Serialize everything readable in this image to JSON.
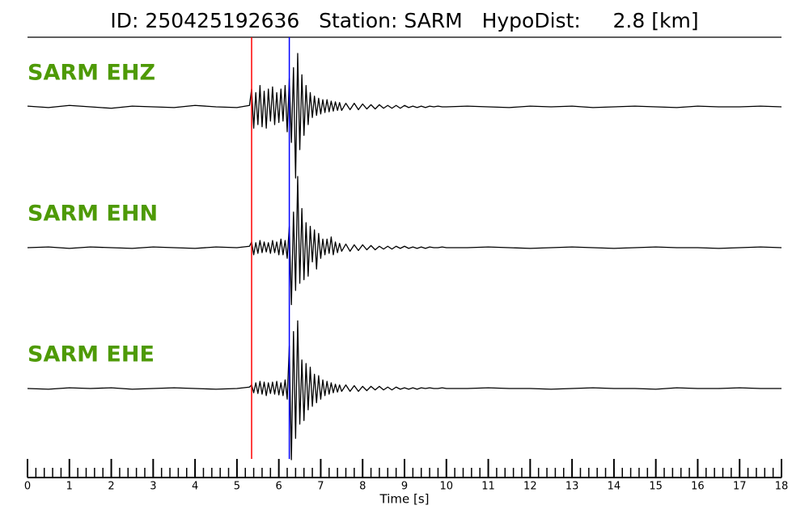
{
  "chart_data": {
    "type": "seismogram",
    "title": "ID: 250425192636   Station: SARM   HypoDist:     2.8 [km]",
    "xlabel": "Time [s]",
    "xlim": [
      0,
      18
    ],
    "xticks": [
      0,
      1,
      2,
      3,
      4,
      5,
      6,
      7,
      8,
      9,
      10,
      11,
      12,
      13,
      14,
      15,
      16,
      17,
      18
    ],
    "minor_xtick_step": 0.2,
    "ylim": [
      -1,
      1
    ],
    "label_color": "#4e9a06",
    "picks": [
      {
        "x": 5.35,
        "color": "#ff0000"
      },
      {
        "x": 6.25,
        "color": "#0000ff"
      }
    ],
    "x": [
      0,
      0.5,
      1,
      1.5,
      2,
      2.5,
      3,
      3.5,
      4,
      4.5,
      5,
      5.3,
      5.35,
      5.4,
      5.45,
      5.5,
      5.55,
      5.6,
      5.65,
      5.7,
      5.75,
      5.8,
      5.85,
      5.9,
      5.95,
      6,
      6.05,
      6.1,
      6.15,
      6.2,
      6.25,
      6.3,
      6.35,
      6.4,
      6.45,
      6.5,
      6.55,
      6.6,
      6.65,
      6.7,
      6.75,
      6.8,
      6.85,
      6.9,
      6.95,
      7,
      7.05,
      7.1,
      7.15,
      7.2,
      7.25,
      7.3,
      7.35,
      7.4,
      7.45,
      7.5,
      7.6,
      7.7,
      7.8,
      7.9,
      8,
      8.1,
      8.2,
      8.3,
      8.4,
      8.5,
      8.6,
      8.7,
      8.8,
      8.9,
      9,
      9.1,
      9.2,
      9.3,
      9.4,
      9.5,
      9.6,
      9.7,
      9.8,
      9.9,
      10,
      10.5,
      11,
      11.5,
      12,
      12.5,
      13,
      13.5,
      14,
      14.5,
      15,
      15.5,
      16,
      16.5,
      17,
      17.5,
      18
    ],
    "series": [
      {
        "name": "SARM EHZ",
        "color": "#000000",
        "values": [
          0.01,
          -0.01,
          0.02,
          0,
          -0.02,
          0.01,
          0,
          -0.01,
          0.02,
          0,
          -0.01,
          0.02,
          0.25,
          -0.3,
          0.2,
          -0.25,
          0.3,
          -0.28,
          0.22,
          -0.3,
          0.25,
          -0.2,
          0.28,
          -0.25,
          0.2,
          -0.22,
          0.25,
          -0.2,
          0.3,
          -0.35,
          0.4,
          -0.5,
          0.55,
          -1.0,
          0.75,
          -0.6,
          0.45,
          -0.4,
          0.3,
          -0.25,
          0.2,
          -0.15,
          0.15,
          -0.12,
          0.12,
          -0.1,
          0.1,
          -0.08,
          0.1,
          -0.07,
          0.08,
          -0.06,
          0.07,
          -0.05,
          0.06,
          -0.05,
          0.05,
          -0.04,
          0.05,
          -0.04,
          0.04,
          -0.03,
          0.03,
          -0.03,
          0.03,
          -0.02,
          0.02,
          -0.02,
          0.02,
          -0.02,
          0.02,
          -0.01,
          0.01,
          -0.01,
          0.01,
          -0.01,
          0.01,
          0,
          0.01,
          0,
          0,
          0.01,
          0,
          -0.01,
          0.01,
          0,
          0.01,
          -0.01,
          0,
          0.01,
          0,
          -0.01,
          0.01,
          0,
          0,
          0.01,
          0
        ]
      },
      {
        "name": "SARM EHN",
        "color": "#000000",
        "values": [
          0,
          0.01,
          -0.01,
          0.01,
          0,
          -0.01,
          0.01,
          0,
          -0.01,
          0.01,
          0,
          0.02,
          0.08,
          -0.1,
          0.07,
          -0.08,
          0.1,
          -0.07,
          0.08,
          -0.06,
          0.07,
          -0.08,
          0.1,
          -0.07,
          0.08,
          -0.1,
          0.12,
          -0.1,
          0.1,
          -0.15,
          0.3,
          -0.8,
          0.5,
          -0.6,
          1.0,
          -0.5,
          0.55,
          -0.45,
          0.35,
          -0.4,
          0.3,
          -0.2,
          0.25,
          -0.3,
          0.2,
          -0.15,
          0.12,
          -0.1,
          0.12,
          -0.08,
          0.15,
          -0.1,
          0.08,
          -0.07,
          0.06,
          -0.05,
          0.05,
          -0.05,
          0.04,
          -0.04,
          0.04,
          -0.03,
          0.03,
          -0.03,
          0.02,
          -0.02,
          0.02,
          -0.02,
          0.02,
          -0.01,
          0.02,
          -0.01,
          0.01,
          -0.01,
          0.01,
          -0.01,
          0.01,
          0,
          0,
          0.01,
          0,
          0,
          0.01,
          0,
          -0.01,
          0,
          0.01,
          0,
          -0.01,
          0,
          0.01,
          0,
          0,
          -0.01,
          0,
          0.01,
          0
        ]
      },
      {
        "name": "SARM EHE",
        "color": "#000000",
        "values": [
          0,
          -0.01,
          0.01,
          0,
          0.01,
          -0.01,
          0,
          0.01,
          0,
          -0.01,
          0,
          0.02,
          0.05,
          -0.06,
          0.08,
          -0.07,
          0.1,
          -0.08,
          0.09,
          -0.1,
          0.08,
          -0.07,
          0.09,
          -0.08,
          0.1,
          -0.09,
          0.08,
          -0.1,
          0.12,
          -0.15,
          0.6,
          -1.0,
          0.8,
          -0.7,
          0.95,
          -0.5,
          0.4,
          -0.45,
          0.35,
          -0.3,
          0.3,
          -0.25,
          0.2,
          -0.2,
          0.18,
          -0.15,
          0.12,
          -0.1,
          0.1,
          -0.08,
          0.08,
          -0.06,
          0.06,
          -0.05,
          0.05,
          -0.04,
          0.05,
          -0.04,
          0.04,
          -0.04,
          0.03,
          -0.03,
          0.03,
          -0.02,
          0.03,
          -0.02,
          0.02,
          -0.02,
          0.02,
          -0.01,
          0.01,
          -0.01,
          0.01,
          -0.01,
          0.01,
          0,
          0.01,
          0,
          0,
          0.01,
          0,
          0,
          0.01,
          0,
          0,
          -0.01,
          0,
          0.01,
          0,
          0,
          -0.01,
          0.01,
          0,
          0,
          0.01,
          0,
          0
        ]
      }
    ]
  }
}
